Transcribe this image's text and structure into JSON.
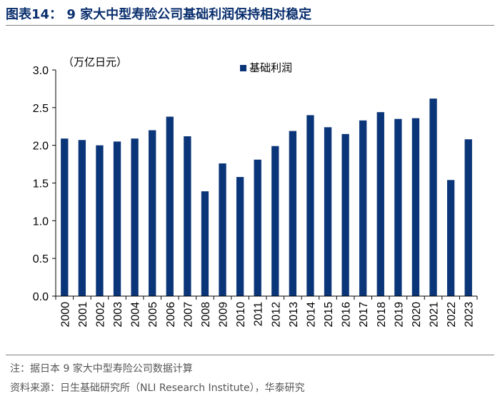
{
  "figure": {
    "title": "图表14： 9 家大中型寿险公司基础利润保持相对稳定",
    "note": "注：据日本 9 家大中型寿险公司数据计算",
    "source": "资料来源：日生基础研究所（NLI Research Institute），华泰研究"
  },
  "colors": {
    "bar": "#0a3578",
    "title": "#0a2f6e",
    "rule": "#7f7f7f"
  },
  "chart_data": {
    "type": "bar",
    "title": "",
    "unit_label": "（万亿日元）",
    "xlabel": "",
    "ylabel": "",
    "ylim": [
      0,
      3.0
    ],
    "yticks": [
      "0.0",
      "0.5",
      "1.0",
      "1.5",
      "2.0",
      "2.5",
      "3.0"
    ],
    "legend_position": "top-right",
    "grid": false,
    "categories": [
      "2000",
      "2001",
      "2002",
      "2003",
      "2004",
      "2005",
      "2006",
      "2007",
      "2008",
      "2009",
      "2010",
      "2011",
      "2012",
      "2013",
      "2014",
      "2015",
      "2016",
      "2017",
      "2018",
      "2019",
      "2020",
      "2021",
      "2022",
      "2023"
    ],
    "series": [
      {
        "name": "基础利润",
        "values": [
          2.09,
          2.07,
          2.0,
          2.05,
          2.09,
          2.2,
          2.38,
          2.12,
          1.39,
          1.76,
          1.58,
          1.81,
          1.99,
          2.19,
          2.4,
          2.24,
          2.15,
          2.33,
          2.44,
          2.35,
          2.36,
          2.62,
          1.54,
          2.08
        ]
      }
    ]
  }
}
